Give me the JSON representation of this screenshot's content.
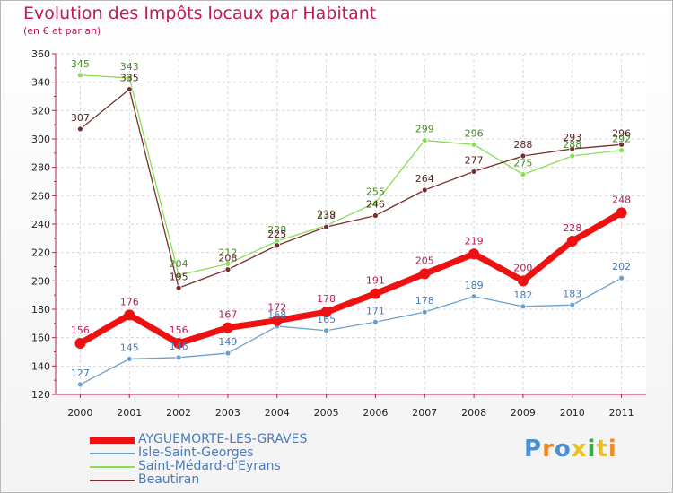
{
  "chart_data": {
    "type": "line",
    "title": "Evolution des Impôts locaux par Habitant",
    "subtitle": "(en € et par an)",
    "xlabel": "",
    "ylabel": "",
    "x": [
      "2000",
      "2001",
      "2002",
      "2003",
      "2004",
      "2005",
      "2006",
      "2007",
      "2008",
      "2009",
      "2010",
      "2011"
    ],
    "ylim": [
      120,
      360
    ],
    "yticks": [
      120,
      140,
      160,
      180,
      200,
      220,
      240,
      260,
      280,
      300,
      320,
      340,
      360
    ],
    "grid": true,
    "legend_position": "bottom-left",
    "series": [
      {
        "name": "AYGUEMORTE-LES-GRAVES",
        "color": "#ee1111",
        "values": [
          156,
          176,
          156,
          167,
          172,
          178,
          191,
          205,
          219,
          200,
          228,
          248
        ]
      },
      {
        "name": "Isle-Saint-Georges",
        "color": "#6aa0d0",
        "values": [
          127,
          145,
          146,
          149,
          168,
          165,
          171,
          178,
          189,
          182,
          183,
          202
        ]
      },
      {
        "name": "Saint-Médard-d'Eyrans",
        "color": "#88dd55",
        "values": [
          345,
          343,
          204,
          212,
          228,
          239,
          255,
          299,
          296,
          275,
          288,
          292
        ]
      },
      {
        "name": "Beautiran",
        "color": "#7a2e2e",
        "values": [
          307,
          335,
          195,
          208,
          225,
          238,
          246,
          264,
          277,
          288,
          293,
          296
        ]
      }
    ]
  },
  "brand": {
    "text": "Proxiti",
    "colors": [
      "#4a90d9",
      "#f08a24",
      "#4a90d9",
      "#e8c020",
      "#3aa64a",
      "#e8c020",
      "#f08a24"
    ]
  }
}
